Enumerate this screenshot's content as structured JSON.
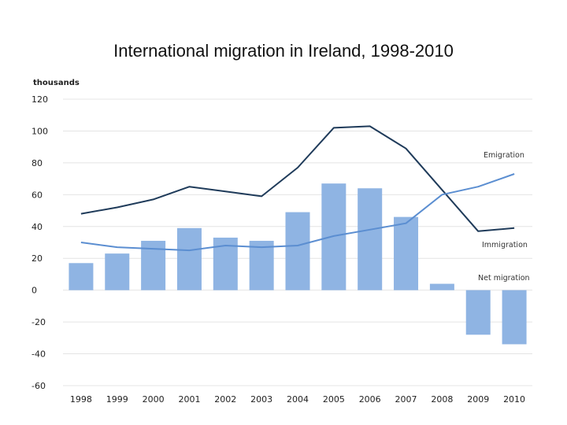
{
  "title": "International migration in Ireland, 1998-2010",
  "chart_data": {
    "type": "bar",
    "title": "International migration in Ireland, 1998-2010",
    "ylabel": "thousands",
    "xlabel": "",
    "categories": [
      "1998",
      "1999",
      "2000",
      "2001",
      "2002",
      "2003",
      "2004",
      "2005",
      "2006",
      "2007",
      "2008",
      "2009",
      "2010"
    ],
    "ylim": [
      -60,
      120
    ],
    "yticks": [
      120,
      100,
      80,
      60,
      40,
      20,
      0,
      -20,
      -40,
      -60
    ],
    "grid": true,
    "series": [
      {
        "name": "Net migration",
        "kind": "bar",
        "color": "#8fb4e3",
        "values": [
          17,
          23,
          31,
          39,
          33,
          31,
          49,
          67,
          64,
          46,
          4,
          -28,
          -34
        ]
      },
      {
        "name": "Emigration",
        "kind": "line",
        "color": "#1f3b5a",
        "values": [
          48,
          52,
          57,
          65,
          62,
          59,
          77,
          102,
          103,
          89,
          63,
          37,
          39
        ]
      },
      {
        "name": "Immigration",
        "kind": "line",
        "color": "#5b8ed1",
        "values": [
          30,
          27,
          26,
          25,
          28,
          27,
          28,
          34,
          38,
          42,
          60,
          65,
          73
        ]
      }
    ]
  }
}
